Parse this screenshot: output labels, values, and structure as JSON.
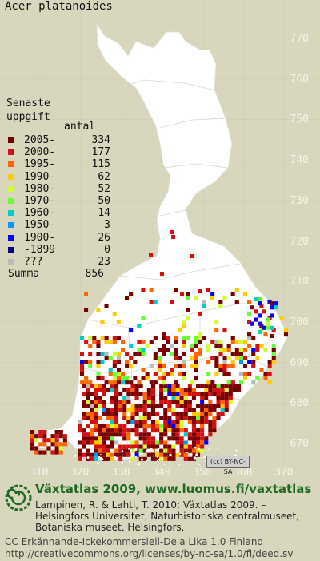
{
  "title": "Acer platanoides",
  "legend": {
    "heading_line1": "Senaste",
    "heading_line2": "uppgift",
    "count_heading": "antal",
    "rows": [
      {
        "label": "2005-",
        "count": "334",
        "color": "#7a0000"
      },
      {
        "label": "2000-",
        "count": "177",
        "color": "#d51010"
      },
      {
        "label": "1995-",
        "count": "115",
        "color": "#ff6600"
      },
      {
        "label": "1990-",
        "count": "62",
        "color": "#ffcc00"
      },
      {
        "label": "1980-",
        "count": "52",
        "color": "#ccff33"
      },
      {
        "label": "1970-",
        "count": "50",
        "color": "#66ff33"
      },
      {
        "label": "1960-",
        "count": "14",
        "color": "#00cccc"
      },
      {
        "label": "1950-",
        "count": "3",
        "color": "#0099ff"
      },
      {
        "label": "1900-",
        "count": "26",
        "color": "#0000ff"
      },
      {
        "label": "-1899",
        "count": "0",
        "color": "#000080"
      },
      {
        "label": "???",
        "count": "23",
        "color": "#bbbbbb"
      }
    ],
    "summa_label": "Summa",
    "summa_value": "856"
  },
  "y_ticks": [
    "770",
    "760",
    "750",
    "740",
    "730",
    "720",
    "710",
    "700",
    "690",
    "680",
    "670"
  ],
  "x_ticks": [
    "310",
    "320",
    "330",
    "340",
    "350",
    "360",
    "370"
  ],
  "cc_badge": "(cc) BY-NC-SA",
  "footer": {
    "heading": "Växtatlas 2009, www.luomus.fi/vaxtatlas",
    "citation_line1": "Lampinen, R. & Lahti, T. 2010: Växtatlas 2009. –",
    "citation_line2": "Helsingfors Universitet, Naturhistoriska centralmuseet,",
    "citation_line3": "Botaniska museet, Helsingfors.",
    "license_line1": "CC Erkännande-Ickekommersiell-Dela Lika 1.0 Finland",
    "license_line2": "http://creativecommons.org/licenses/by-nc-sa/1.0/fi/deed.sv"
  },
  "colors": {
    "background": "#d8d7bd",
    "land": "#ffffff",
    "grid": "#d0d0c6",
    "heading_green": "#1c6a22"
  }
}
